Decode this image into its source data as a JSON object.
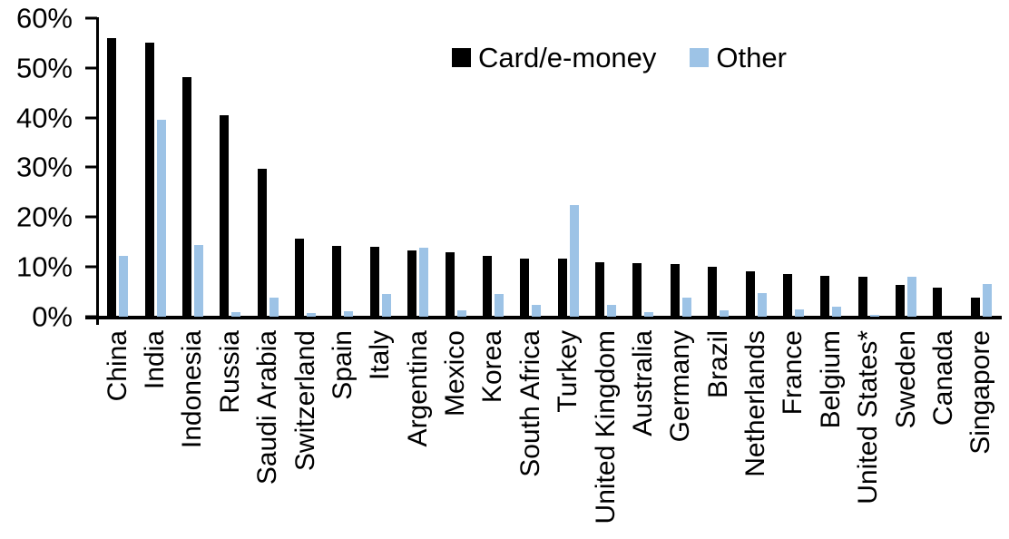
{
  "chart_data": {
    "type": "bar",
    "title": "",
    "xlabel": "",
    "ylabel": "",
    "ylim": [
      0,
      60
    ],
    "grid": false,
    "legend_position": "top-center",
    "y_ticks": [
      "0%",
      "10%",
      "20%",
      "30%",
      "40%",
      "50%",
      "60%"
    ],
    "categories": [
      "China",
      "India",
      "Indonesia",
      "Russia",
      "Saudi Arabia",
      "Switzerland",
      "Spain",
      "Italy",
      "Argentina",
      "Mexico",
      "Korea",
      "South Africa",
      "Turkey",
      "United Kingdom",
      "Australia",
      "Germany",
      "Brazil",
      "Netherlands",
      "France",
      "Belgium",
      "United States*",
      "Sweden",
      "Canada",
      "Singapore"
    ],
    "series": [
      {
        "name": "Card/e-money",
        "color": "#000000",
        "values": [
          56,
          55,
          48.2,
          40.4,
          29.8,
          15.6,
          14.2,
          14.1,
          13.4,
          12.9,
          12.2,
          11.7,
          11.6,
          11,
          10.8,
          10.5,
          10,
          9.2,
          8.6,
          8.2,
          8,
          6.4,
          5.9,
          3.8
        ]
      },
      {
        "name": "Other",
        "color": "#9DC3E6",
        "values": [
          12.3,
          39.5,
          14.4,
          1,
          3.8,
          0.8,
          1.1,
          4.5,
          13.8,
          1.3,
          4.6,
          2.3,
          22.5,
          2.4,
          1,
          3.9,
          1.2,
          4.8,
          1.5,
          2,
          0.3,
          8,
          0,
          6.6
        ]
      }
    ]
  }
}
